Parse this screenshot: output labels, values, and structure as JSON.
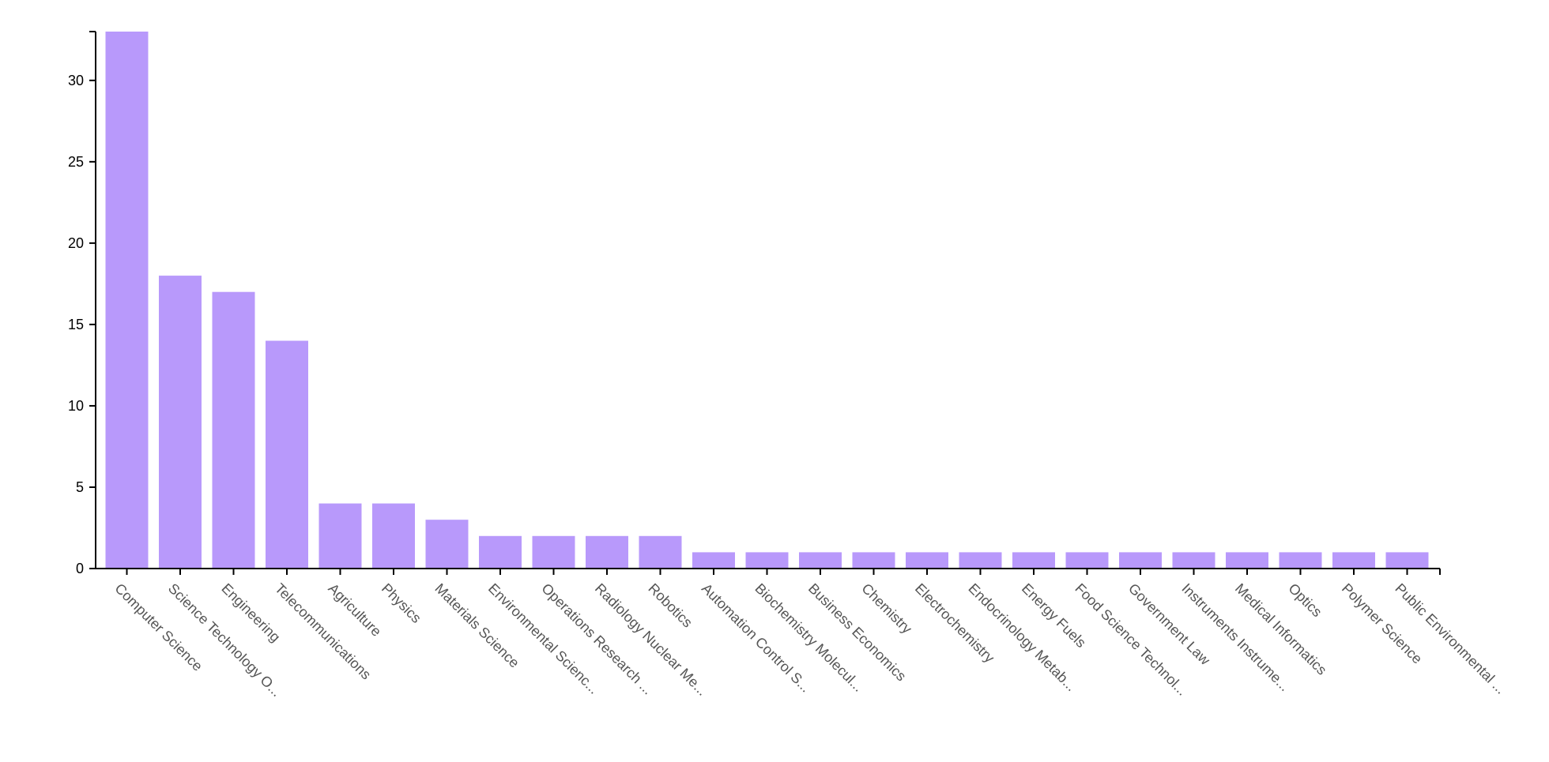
{
  "chart_data": {
    "type": "bar",
    "categories": [
      "Computer Science",
      "Science Technology O...",
      "Engineering",
      "Telecommunications",
      "Agriculture",
      "Physics",
      "Materials Science",
      "Environmental Scienc...",
      "Operations Research ...",
      "Radiology Nuclear Me...",
      "Robotics",
      "Automation Control S...",
      "Biochemistry Molecul...",
      "Business Economics",
      "Chemistry",
      "Electrochemistry",
      "Endocrinology Metab...",
      "Energy Fuels",
      "Food Science Technol...",
      "Government Law",
      "Instruments Instrume...",
      "Medical Informatics",
      "Optics",
      "Polymer Science",
      "Public Environmental ..."
    ],
    "values": [
      33,
      18,
      17,
      14,
      4,
      4,
      3,
      2,
      2,
      2,
      2,
      1,
      1,
      1,
      1,
      1,
      1,
      1,
      1,
      1,
      1,
      1,
      1,
      1,
      1
    ],
    "yticks": [
      "0",
      "5",
      "10",
      "15",
      "20",
      "25",
      "30"
    ],
    "ylim": [
      0,
      33
    ],
    "title": "",
    "xlabel": "",
    "ylabel": "",
    "grid": false,
    "bar_color": "#b899fb",
    "axis_color": "#000000",
    "tick_label_color": "#555555"
  }
}
